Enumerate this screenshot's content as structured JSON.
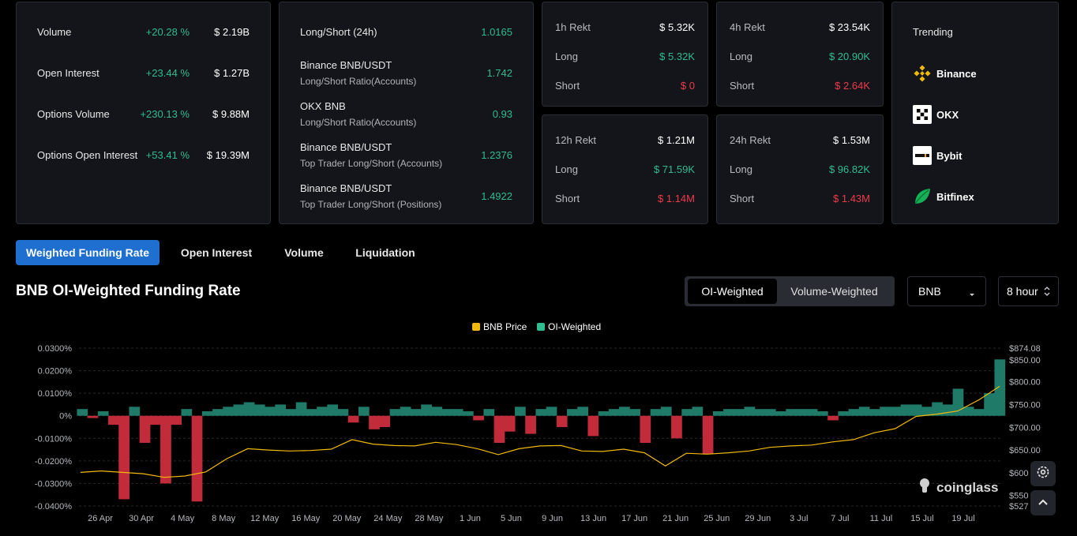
{
  "overview": {
    "rows": [
      {
        "label": "Volume",
        "change": "+20.28 %",
        "value": "$ 2.19B"
      },
      {
        "label": "Open Interest",
        "change": "+23.44 %",
        "value": "$ 1.27B"
      },
      {
        "label": "Options Volume",
        "change": "+230.13 %",
        "value": "$ 9.88M"
      },
      {
        "label": "Options Open Interest",
        "change": "+53.41 %",
        "value": "$ 19.39M"
      }
    ]
  },
  "long_short": {
    "header_label": "Long/Short (24h)",
    "header_value": "1.0165",
    "rows": [
      {
        "title": "Binance BNB/USDT",
        "subtitle": "Long/Short Ratio(Accounts)",
        "value": "1.742"
      },
      {
        "title": "OKX BNB",
        "subtitle": "Long/Short Ratio(Accounts)",
        "value": "0.93"
      },
      {
        "title": "Binance BNB/USDT",
        "subtitle": "Top Trader Long/Short (Accounts)",
        "value": "1.2376"
      },
      {
        "title": "Binance BNB/USDT",
        "subtitle": "Top Trader Long/Short (Positions)",
        "value": "1.4922"
      }
    ]
  },
  "rekt": [
    {
      "title": "1h Rekt",
      "total": "$ 5.32K",
      "long_label": "Long",
      "long": "$ 5.32K",
      "short_label": "Short",
      "short": "$ 0"
    },
    {
      "title": "4h Rekt",
      "total": "$ 23.54K",
      "long_label": "Long",
      "long": "$ 20.90K",
      "short_label": "Short",
      "short": "$ 2.64K"
    },
    {
      "title": "12h Rekt",
      "total": "$ 1.21M",
      "long_label": "Long",
      "long": "$ 71.59K",
      "short_label": "Short",
      "short": "$ 1.14M"
    },
    {
      "title": "24h Rekt",
      "total": "$ 1.53M",
      "long_label": "Long",
      "long": "$ 96.82K",
      "short_label": "Short",
      "short": "$ 1.43M"
    }
  ],
  "trending": {
    "title": "Trending",
    "items": [
      {
        "name": "Binance",
        "icon": "binance-logo-icon"
      },
      {
        "name": "OKX",
        "icon": "okx-logo-icon"
      },
      {
        "name": "Bybit",
        "icon": "bybit-logo-icon"
      },
      {
        "name": "Bitfinex",
        "icon": "bitfinex-logo-icon"
      }
    ]
  },
  "tabs": [
    "Weighted Funding Rate",
    "Open Interest",
    "Volume",
    "Liquidation"
  ],
  "active_tab": "Weighted Funding Rate",
  "section": {
    "title": "BNB OI-Weighted Funding Rate",
    "toggle": [
      "OI-Weighted",
      "Volume-Weighted"
    ],
    "toggle_active": "OI-Weighted",
    "coin_select": "BNB",
    "interval_select": "8 hour"
  },
  "colors": {
    "accent": "#1f6fd1",
    "positive": "#2fbd8f",
    "negative": "#ef3b4b",
    "price_line": "#f0b90b",
    "funding_pos": "#1f7a68",
    "funding_neg": "#c22b3a"
  },
  "chart_data": {
    "type": "area",
    "legend": [
      "BNB Price",
      "OI-Weighted"
    ],
    "legend_position": "top-center",
    "watermark": "coinglass",
    "grid": true,
    "x_tick_labels": [
      "26 Apr",
      "30 Apr",
      "4 May",
      "8 May",
      "12 May",
      "16 May",
      "20 May",
      "24 May",
      "28 May",
      "1 Jun",
      "5 Jun",
      "9 Jun",
      "13 Jun",
      "17 Jun",
      "21 Jun",
      "25 Jun",
      "29 Jun",
      "3 Jul",
      "7 Jul",
      "11 Jul",
      "15 Jul",
      "19 Jul"
    ],
    "y_left_ticks": [
      "0.0300%",
      "0.0200%",
      "0.0100%",
      "0%",
      "-0.0100%",
      "-0.0200%",
      "-0.0300%",
      "-0.0400%"
    ],
    "y_left_range": [
      -0.04,
      0.03
    ],
    "y_right_ticks": [
      "$874.08",
      "$850.00",
      "$800.00",
      "$750.00",
      "$700.00",
      "$650.00",
      "$600",
      "$550",
      "$527"
    ],
    "y_right_range": [
      527,
      874.08
    ],
    "series": [
      {
        "name": "BNB Price",
        "x": [
          "26 Apr",
          "28 Apr",
          "30 Apr",
          "2 May",
          "4 May",
          "6 May",
          "8 May",
          "10 May",
          "12 May",
          "14 May",
          "16 May",
          "18 May",
          "20 May",
          "22 May",
          "24 May",
          "26 May",
          "28 May",
          "30 May",
          "1 Jun",
          "3 Jun",
          "5 Jun",
          "7 Jun",
          "9 Jun",
          "11 Jun",
          "13 Jun",
          "15 Jun",
          "17 Jun",
          "19 Jun",
          "21 Jun",
          "23 Jun",
          "25 Jun",
          "27 Jun",
          "29 Jun",
          "1 Jul",
          "3 Jul",
          "5 Jul",
          "7 Jul",
          "9 Jul",
          "11 Jul",
          "13 Jul",
          "15 Jul",
          "17 Jul",
          "19 Jul",
          "21 Jul",
          "23 Jul"
        ],
        "values": [
          601,
          604,
          601,
          598,
          590,
          593,
          602,
          631,
          653,
          650,
          648,
          649,
          652,
          673,
          663,
          660,
          659,
          667,
          662,
          653,
          640,
          653,
          659,
          660,
          648,
          647,
          652,
          644,
          615,
          643,
          641,
          644,
          648,
          656,
          659,
          661,
          668,
          673,
          688,
          697,
          724,
          729,
          736,
          760,
          790
        ]
      },
      {
        "name": "OI-Weighted",
        "x": [
          "26 Apr",
          "27 Apr",
          "28 Apr",
          "29 Apr",
          "30 Apr",
          "1 May",
          "2 May",
          "3 May",
          "4 May",
          "5 May",
          "6 May",
          "7 May",
          "8 May",
          "9 May",
          "10 May",
          "11 May",
          "12 May",
          "13 May",
          "14 May",
          "15 May",
          "16 May",
          "17 May",
          "18 May",
          "19 May",
          "20 May",
          "21 May",
          "22 May",
          "23 May",
          "24 May",
          "25 May",
          "26 May",
          "27 May",
          "28 May",
          "29 May",
          "30 May",
          "31 May",
          "1 Jun",
          "2 Jun",
          "3 Jun",
          "4 Jun",
          "5 Jun",
          "6 Jun",
          "7 Jun",
          "8 Jun",
          "9 Jun",
          "10 Jun",
          "11 Jun",
          "12 Jun",
          "13 Jun",
          "14 Jun",
          "15 Jun",
          "16 Jun",
          "17 Jun",
          "18 Jun",
          "19 Jun",
          "20 Jun",
          "21 Jun",
          "22 Jun",
          "23 Jun",
          "24 Jun",
          "25 Jun",
          "26 Jun",
          "27 Jun",
          "28 Jun",
          "29 Jun",
          "30 Jun",
          "1 Jul",
          "2 Jul",
          "3 Jul",
          "4 Jul",
          "5 Jul",
          "6 Jul",
          "7 Jul",
          "8 Jul",
          "9 Jul",
          "10 Jul",
          "11 Jul",
          "12 Jul",
          "13 Jul",
          "14 Jul",
          "15 Jul",
          "16 Jul",
          "17 Jul",
          "18 Jul",
          "19 Jul",
          "20 Jul",
          "21 Jul",
          "22 Jul",
          "23 Jul"
        ],
        "values": [
          0.003,
          -0.001,
          0.002,
          -0.004,
          -0.037,
          0.004,
          -0.012,
          -0.004,
          -0.03,
          -0.004,
          0.003,
          -0.038,
          0.002,
          0.003,
          0.004,
          0.005,
          0.006,
          0.005,
          0.004,
          0.005,
          0.003,
          0.006,
          0.003,
          0.004,
          0.005,
          0.003,
          -0.003,
          0.004,
          -0.006,
          -0.005,
          0.003,
          0.004,
          0.003,
          0.005,
          0.004,
          0.003,
          0.003,
          0.002,
          -0.002,
          0.003,
          -0.012,
          -0.007,
          0.004,
          -0.008,
          0.003,
          0.004,
          -0.005,
          0.003,
          0.004,
          -0.009,
          0.002,
          0.003,
          0.004,
          0.003,
          -0.012,
          0.003,
          0.004,
          -0.01,
          0.003,
          0.004,
          -0.017,
          0.002,
          0.003,
          0.003,
          0.004,
          0.003,
          0.003,
          0.002,
          0.003,
          0.003,
          0.003,
          0.002,
          -0.002,
          0.002,
          0.003,
          0.004,
          0.003,
          0.004,
          0.004,
          0.005,
          0.005,
          0.004,
          0.006,
          0.005,
          0.012,
          0.004,
          0.003,
          0.01,
          0.025
        ]
      }
    ]
  }
}
